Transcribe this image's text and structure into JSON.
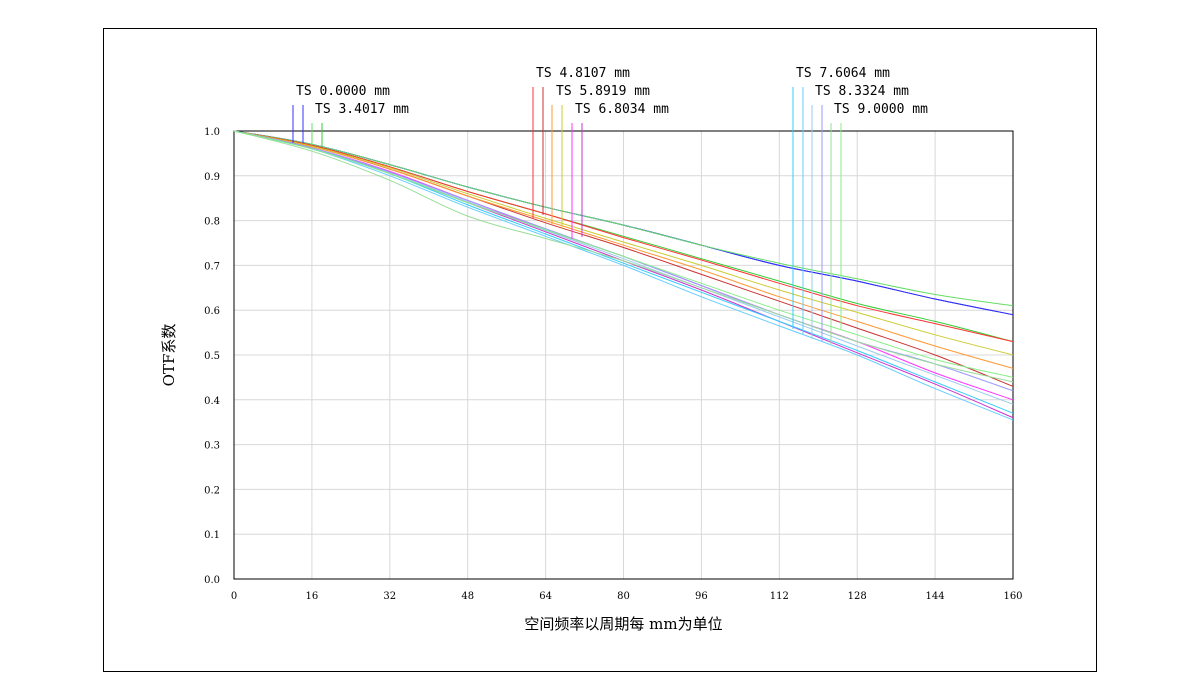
{
  "chart_data": {
    "type": "line",
    "title": "",
    "xlabel": "空间频率以周期每 mm为单位",
    "ylabel": "OTF系数",
    "xlim": [
      0,
      160
    ],
    "ylim": [
      0,
      1.0
    ],
    "xticks": [
      0,
      16,
      32,
      48,
      64,
      80,
      96,
      112,
      128,
      144,
      160
    ],
    "yticks": [
      0.0,
      0.1,
      0.2,
      0.3,
      0.4,
      0.5,
      0.6,
      0.7,
      0.8,
      0.9,
      1.0
    ],
    "ytick_labels": [
      "0.0",
      "0.1",
      "0.2",
      "0.3",
      "0.4",
      "0.5",
      "0.6",
      "0.7",
      "0.8",
      "0.9",
      "1.0"
    ],
    "grid": true,
    "x": [
      0,
      16,
      32,
      48,
      64,
      80,
      96,
      112,
      128,
      144,
      160
    ],
    "series": [
      {
        "name": "TS 0.0000 mm",
        "color": "#0000cc",
        "values": [
          1.0,
          0.97,
          0.925,
          0.875,
          0.83,
          0.79,
          0.745,
          0.7,
          0.665,
          0.625,
          0.59
        ]
      },
      {
        "name": "TS 0.0000 mm",
        "color": "#3333ff",
        "values": [
          1.0,
          0.97,
          0.925,
          0.875,
          0.83,
          0.79,
          0.745,
          0.7,
          0.665,
          0.625,
          0.59
        ]
      },
      {
        "name": "TS 3.4017 mm",
        "color": "#66dd66",
        "values": [
          1.0,
          0.97,
          0.925,
          0.875,
          0.83,
          0.79,
          0.745,
          0.705,
          0.67,
          0.635,
          0.61
        ]
      },
      {
        "name": "TS 3.4017 mm",
        "color": "#33cc33",
        "values": [
          1.0,
          0.968,
          0.92,
          0.865,
          0.815,
          0.765,
          0.715,
          0.665,
          0.615,
          0.575,
          0.53
        ]
      },
      {
        "name": "TS 4.8107 mm",
        "color": "#ff3333",
        "values": [
          1.0,
          0.968,
          0.92,
          0.865,
          0.815,
          0.762,
          0.712,
          0.66,
          0.61,
          0.57,
          0.53
        ]
      },
      {
        "name": "TS 4.8107 mm",
        "color": "#cc3333",
        "values": [
          1.0,
          0.965,
          0.915,
          0.855,
          0.795,
          0.74,
          0.68,
          0.62,
          0.56,
          0.5,
          0.43
        ]
      },
      {
        "name": "TS 5.8919 mm",
        "color": "#ff9933",
        "values": [
          1.0,
          0.965,
          0.915,
          0.855,
          0.8,
          0.745,
          0.69,
          0.63,
          0.575,
          0.52,
          0.47
        ]
      },
      {
        "name": "TS 5.8919 mm",
        "color": "#cccc33",
        "values": [
          1.0,
          0.966,
          0.918,
          0.86,
          0.805,
          0.752,
          0.7,
          0.645,
          0.595,
          0.545,
          0.5
        ]
      },
      {
        "name": "TS 6.8034 mm",
        "color": "#ff33ff",
        "values": [
          1.0,
          0.962,
          0.91,
          0.845,
          0.78,
          0.72,
          0.655,
          0.59,
          0.53,
          0.46,
          0.4
        ]
      },
      {
        "name": "TS 6.8034 mm",
        "color": "#cc33cc",
        "values": [
          1.0,
          0.962,
          0.905,
          0.84,
          0.775,
          0.71,
          0.645,
          0.575,
          0.505,
          0.435,
          0.36
        ]
      },
      {
        "name": "TS 7.6064 mm",
        "color": "#33ccff",
        "values": [
          1.0,
          0.96,
          0.905,
          0.835,
          0.77,
          0.705,
          0.64,
          0.575,
          0.51,
          0.44,
          0.37
        ]
      },
      {
        "name": "TS 7.6064 mm",
        "color": "#66ccff",
        "values": [
          1.0,
          0.96,
          0.9,
          0.83,
          0.765,
          0.7,
          0.63,
          0.565,
          0.5,
          0.425,
          0.355
        ]
      },
      {
        "name": "TS 8.3324 mm",
        "color": "#99ccee",
        "values": [
          1.0,
          0.962,
          0.908,
          0.842,
          0.778,
          0.715,
          0.65,
          0.585,
          0.52,
          0.455,
          0.39
        ]
      },
      {
        "name": "TS 8.3324 mm",
        "color": "#9999ff",
        "values": [
          1.0,
          0.962,
          0.908,
          0.845,
          0.782,
          0.72,
          0.655,
          0.59,
          0.53,
          0.48,
          0.42
        ]
      },
      {
        "name": "TS 9.0000 mm",
        "color": "#99dd99",
        "values": [
          1.0,
          0.955,
          0.89,
          0.81,
          0.76,
          0.71,
          0.65,
          0.59,
          0.53,
          0.48,
          0.44
        ]
      },
      {
        "name": "TS 9.0000 mm",
        "color": "#88ee88",
        "values": [
          1.0,
          0.96,
          0.905,
          0.84,
          0.78,
          0.72,
          0.66,
          0.6,
          0.545,
          0.49,
          0.45
        ]
      }
    ],
    "legend_labels": [
      {
        "text": "TS 0.0000 mm",
        "colors": [
          "#3333ff",
          "#3333ff"
        ]
      },
      {
        "text": "TS 3.4017 mm",
        "colors": [
          "#66dd66",
          "#33cc33"
        ]
      },
      {
        "text": "TS 4.8107 mm",
        "colors": [
          "#ff3333",
          "#cc3333"
        ]
      },
      {
        "text": "TS 5.8919 mm",
        "colors": [
          "#ff9933",
          "#cccc33"
        ]
      },
      {
        "text": "TS 6.8034 mm",
        "colors": [
          "#ff33ff",
          "#cc33cc"
        ]
      },
      {
        "text": "TS 7.6064 mm",
        "colors": [
          "#33ccff",
          "#66ccff"
        ]
      },
      {
        "text": "TS 8.3324 mm",
        "colors": [
          "#99ccee",
          "#9999ff"
        ]
      },
      {
        "text": "TS 9.0000 mm",
        "colors": [
          "#99dd99",
          "#88ee88"
        ]
      }
    ]
  }
}
